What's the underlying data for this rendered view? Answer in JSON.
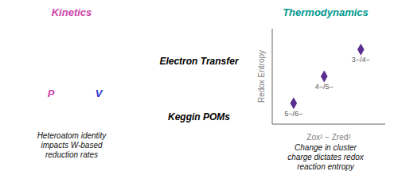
{
  "chart_data": {
    "type": "scatter",
    "x": [
      1,
      2,
      3.2
    ],
    "values": [
      1.5,
      2.4,
      3.3
    ],
    "labels": [
      "5−/6−",
      "4−/5−",
      "3−/4−"
    ],
    "color": "#5B2D8E",
    "marker": "diamond",
    "xlabel": "Zox² − Zred²",
    "ylabel": "Redox Entropy",
    "xlim": [
      0.3,
      4.0
    ],
    "ylim": [
      0.8,
      4.0
    ],
    "tick_labels": false,
    "grid": false,
    "annotations": [
      {
        "text": "Kinetics",
        "color": "#CC44AA"
      },
      {
        "text": "Thermodynamics",
        "color": "#009990"
      },
      {
        "text": "Heteroatom identity\nimpacts W-based\nreduction rates",
        "color": "#111111"
      },
      {
        "text": "Change in cluster\ncharge dictates redox\nreaction entropy",
        "color": "#111111"
      },
      {
        "text": "P",
        "color": "#CC44AA"
      },
      {
        "text": "V",
        "color": "#3333CC"
      },
      {
        "text": "Electron Transfer",
        "color": "#000000"
      },
      {
        "text": "Keggin POMs",
        "color": "#000000"
      }
    ]
  }
}
